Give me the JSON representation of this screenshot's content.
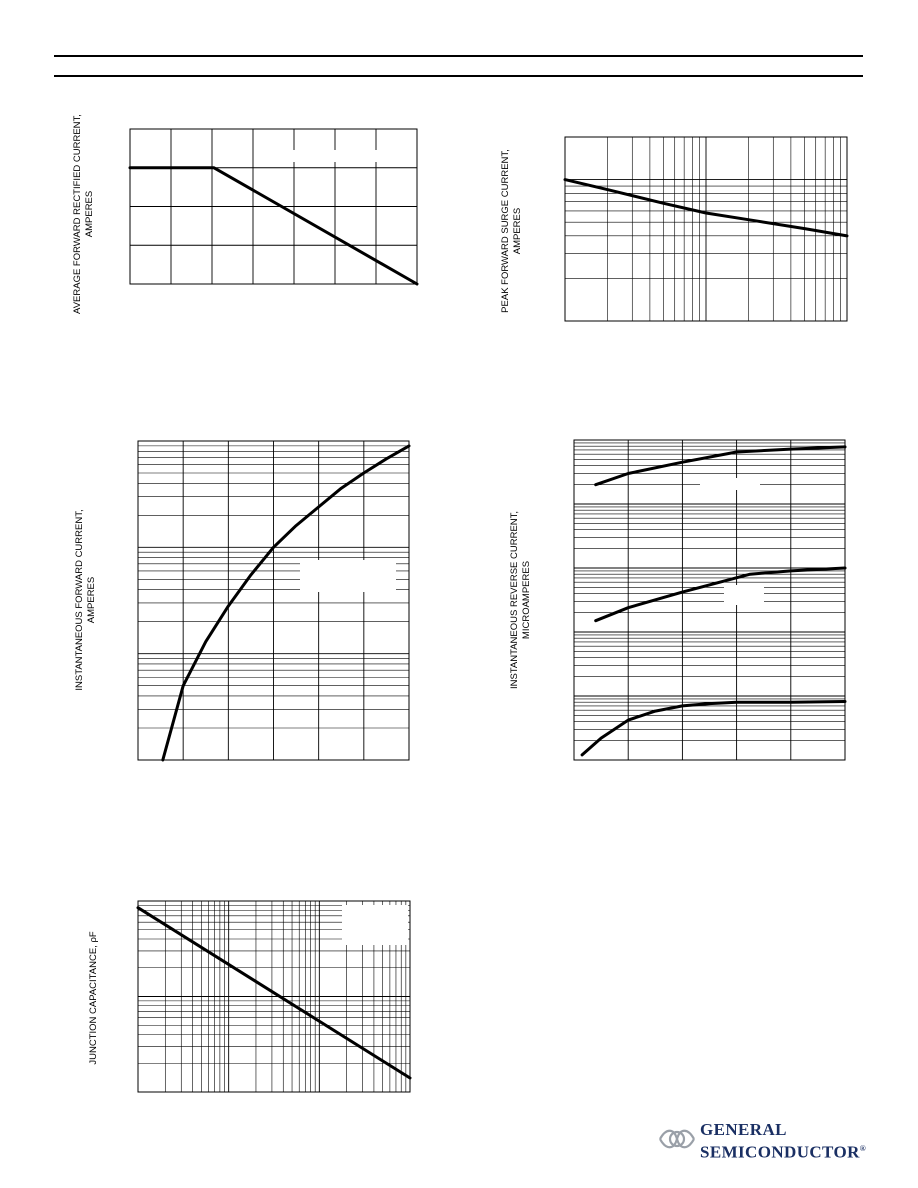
{
  "header": {},
  "logo": {
    "line1": "GENERAL",
    "line2": "SEMICONDUCTOR",
    "mark": "®",
    "color": "#1a2f63"
  },
  "chart_data": [
    {
      "id": "derating",
      "type": "line",
      "ylabel": [
        "AVERAGE FORWARD RECTIFIED CURRENT,",
        "AMPERES"
      ],
      "x_axis": {
        "scale": "linear",
        "min": 0,
        "max": 7,
        "grid": [
          1,
          2,
          3,
          4,
          5,
          6
        ]
      },
      "y_axis": {
        "scale": "linear",
        "min": 0,
        "max": 4,
        "grid": [
          1,
          2,
          3
        ]
      },
      "series": [
        {
          "x": [
            0,
            2.05,
            7
          ],
          "y": [
            3.0,
            3.0,
            0
          ]
        }
      ]
    },
    {
      "id": "surge",
      "type": "line",
      "ylabel": [
        "PEAK FORWARD SURGE CURRENT,",
        "AMPERES"
      ],
      "x_axis": {
        "scale": "log",
        "min": 1,
        "max": 100
      },
      "y_axis": {
        "scale": "log",
        "min": 10,
        "max": 200
      },
      "series": [
        {
          "x": [
            1,
            2,
            5,
            10,
            20,
            50,
            100
          ],
          "y": [
            100,
            85,
            68,
            58,
            52,
            45,
            40
          ]
        }
      ]
    },
    {
      "id": "forward",
      "type": "line",
      "ylabel": [
        "INSTANTANEOUS FORWARD CURRENT,",
        "AMPERES"
      ],
      "x_axis": {
        "scale": "linear",
        "min": 0,
        "max": 6,
        "grid": [
          1,
          2,
          3,
          4,
          5
        ]
      },
      "y_axis": {
        "scale": "log",
        "min": 0.1,
        "max": 100
      },
      "series": [
        {
          "x": [
            0.55,
            1.0,
            1.5,
            2.0,
            2.5,
            3.0,
            3.5,
            4.0,
            4.5,
            5.0,
            5.5,
            6.0
          ],
          "y": [
            0.1,
            0.5,
            1.3,
            2.8,
            5.5,
            10,
            16,
            24,
            36,
            50,
            68,
            90
          ]
        }
      ]
    },
    {
      "id": "reverse",
      "type": "line",
      "ylabel": [
        "INSTANTANEOUS REVERSE CURRENT,",
        "MICROAMPERES"
      ],
      "x_axis": {
        "scale": "linear",
        "min": 0,
        "max": 100,
        "grid": [
          20,
          40,
          60,
          80
        ]
      },
      "y_axis": {
        "scale": "log",
        "min": 0.01,
        "max": 1000
      },
      "series": [
        {
          "x": [
            8,
            20,
            40,
            60,
            80,
            100
          ],
          "y": [
            200,
            300,
            450,
            650,
            720,
            780
          ]
        },
        {
          "x": [
            8,
            20,
            40,
            65,
            80,
            100
          ],
          "y": [
            1.5,
            2.4,
            4.2,
            8,
            9,
            10
          ]
        },
        {
          "x": [
            3,
            10,
            20,
            30,
            40,
            50,
            60,
            80,
            100
          ],
          "y": [
            0.012,
            0.022,
            0.042,
            0.058,
            0.07,
            0.076,
            0.08,
            0.08,
            0.082
          ]
        }
      ]
    },
    {
      "id": "capacitance",
      "type": "line",
      "ylabel": [
        "JUNCTION CAPACITANCE, ρF"
      ],
      "x_axis": {
        "scale": "log",
        "min": 0.1,
        "max": 100
      },
      "y_axis": {
        "scale": "log",
        "min": 10,
        "max": 1000
      },
      "series": [
        {
          "x": [
            0.1,
            100
          ],
          "y": [
            850,
            14
          ]
        }
      ]
    }
  ]
}
